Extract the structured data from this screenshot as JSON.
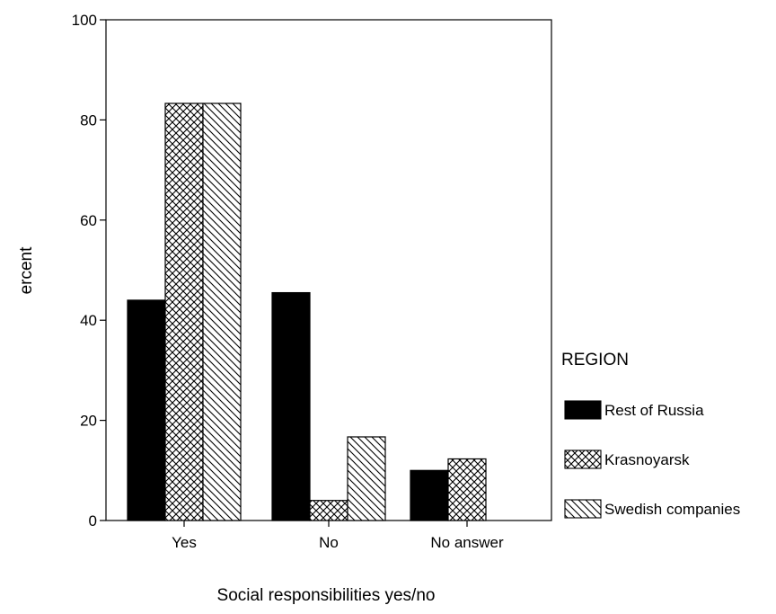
{
  "chart_data": {
    "type": "bar",
    "title": "",
    "xlabel": "Social responsibilities yes/no",
    "ylabel": "ercent",
    "categories": [
      "Yes",
      "No",
      "No answer"
    ],
    "ylim": [
      0,
      100
    ],
    "yticks": [
      0,
      20,
      40,
      60,
      80,
      100
    ],
    "grid": false,
    "legend": {
      "title": "REGION",
      "placement": "right"
    },
    "series": [
      {
        "name": "Rest of Russia",
        "values": [
          44,
          45.5,
          10
        ],
        "pattern": "solid-black"
      },
      {
        "name": "Krasnoyarsk",
        "values": [
          83.3,
          4,
          12.3
        ],
        "pattern": "crosshatch"
      },
      {
        "name": "Swedish companies",
        "values": [
          83.3,
          16.7,
          0
        ],
        "pattern": "diagonal-hatch"
      }
    ]
  }
}
